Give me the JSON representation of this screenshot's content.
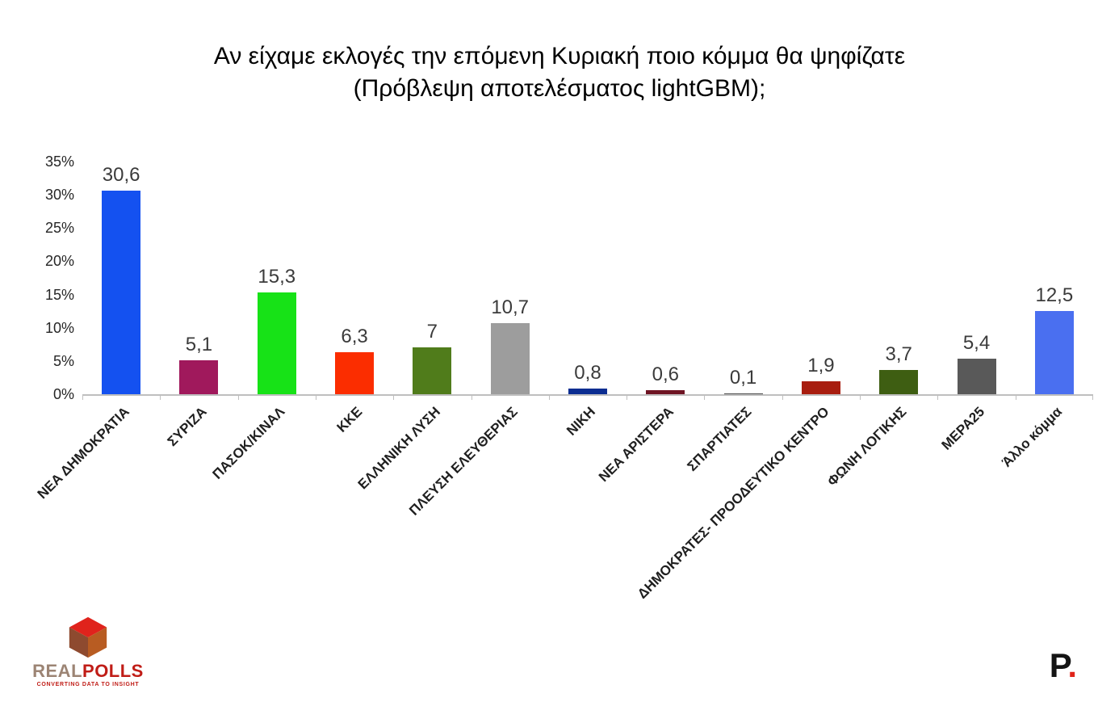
{
  "title": {
    "line1": "Αν είχαμε εκλογές την επόμενη Κυριακή ποιο κόμμα θα ψηφίζατε",
    "line2": "(Πρόβλεψη αποτελέσματος lightGBM);"
  },
  "chart_data": {
    "type": "bar",
    "title": "Αν είχαμε εκλογές την επόμενη Κυριακή ποιο κόμμα θα ψηφίζατε (Πρόβλεψη αποτελέσματος lightGBM);",
    "categories": [
      "ΝΕΑ ΔΗΜΟΚΡΑΤΙΑ",
      "ΣΥΡΙΖΑ",
      "ΠΑΣΟΚ/ΚΙΝΑΛ",
      "ΚΚΕ",
      "ΕΛΛΗΝΙΚΗ ΛΥΣΗ",
      "ΠΛΕΥΣΗ ΕΛΕΥΘΕΡΙΑΣ",
      "ΝΙΚΗ",
      "ΝΕΑ ΑΡΙΣΤΕΡΑ",
      "ΣΠΑΡΤΙΑΤΕΣ",
      "ΔΗΜΟΚΡΑΤΕΣ- ΠΡΟΟΔΕΥΤΙΚΟ ΚΕΝΤΡΟ",
      "ΦΩΝΗ ΛΟΓΙΚΗΣ",
      "ΜΕΡΑ25",
      "Άλλο κόμμα"
    ],
    "values": [
      30.6,
      5.1,
      15.3,
      6.3,
      7,
      10.7,
      0.8,
      0.6,
      0.1,
      1.9,
      3.7,
      5.4,
      12.5
    ],
    "value_labels": [
      "30,6",
      "5,1",
      "15,3",
      "6,3",
      "7",
      "10,7",
      "0,8",
      "0,6",
      "0,1",
      "1,9",
      "3,7",
      "5,4",
      "12,5"
    ],
    "colors": [
      "#1451f0",
      "#a0195c",
      "#17e217",
      "#fb2d00",
      "#507c1b",
      "#9d9d9d",
      "#0b2d91",
      "#6e1423",
      "#4d4d4d",
      "#a81d0f",
      "#3e5e12",
      "#595959",
      "#4a6ff0"
    ],
    "xlabel": "",
    "ylabel": "",
    "ylim": [
      0,
      35
    ],
    "ytick_step": 5,
    "ytick_labels": [
      "0%",
      "5%",
      "10%",
      "15%",
      "20%",
      "25%",
      "30%",
      "35%"
    ],
    "grid": false,
    "legend": "none"
  },
  "footer": {
    "left": {
      "real": "REAL",
      "polls": "POLLS",
      "tagline": "CONVERTING DATA TO INSIGHT"
    },
    "right": {
      "letter": "P",
      "dot": "."
    }
  }
}
